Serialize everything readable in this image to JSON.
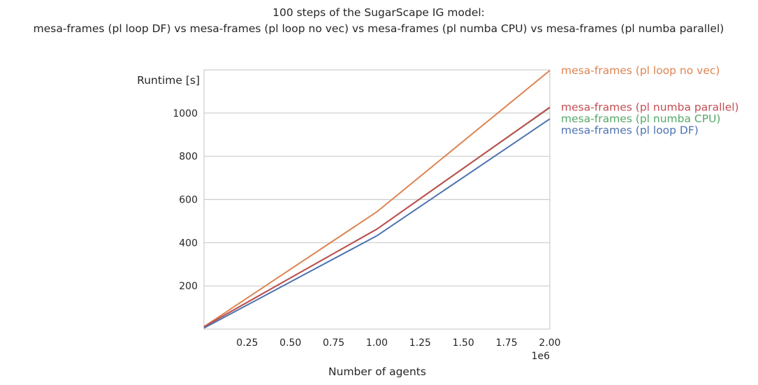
{
  "chart_data": {
    "type": "line",
    "title": "100 steps of the SugarScape IG model:",
    "subtitle": "mesa-frames (pl loop DF) vs mesa-frames (pl loop no vec) vs mesa-frames (pl numba CPU) vs mesa-frames (pl numba parallel)",
    "xlabel": "Number of agents",
    "ylabel": "Runtime [s]",
    "x_offset_label": "1e6",
    "xlim": [
      0,
      2000000
    ],
    "ylim": [
      0,
      1200
    ],
    "x_ticks": [
      250000,
      500000,
      750000,
      1000000,
      1250000,
      1500000,
      1750000,
      2000000
    ],
    "x_tick_labels": [
      "0.25",
      "0.50",
      "0.75",
      "1.00",
      "1.25",
      "1.50",
      "1.75",
      "2.00"
    ],
    "y_ticks": [
      200,
      400,
      600,
      800,
      1000
    ],
    "y_tick_labels": [
      "200",
      "400",
      "600",
      "800",
      "1000"
    ],
    "grid": "horizontal",
    "legend": "inline labels right of lines",
    "x": [
      1,
      1000000,
      2000000
    ],
    "series": [
      {
        "name": "mesa-frames (pl loop DF)",
        "color": "#4c72b0",
        "values": [
          5,
          432,
          973
        ]
      },
      {
        "name": "mesa-frames (pl loop no vec)",
        "color": "#dd8452",
        "values": [
          11,
          543,
          1197
        ]
      },
      {
        "name": "mesa-frames (pl numba CPU)",
        "color": "#55a868",
        "values": [
          11,
          463,
          1025
        ]
      },
      {
        "name": "mesa-frames (pl numba parallel)",
        "color": "#c44e52",
        "values": [
          11,
          463,
          1027
        ]
      }
    ]
  }
}
